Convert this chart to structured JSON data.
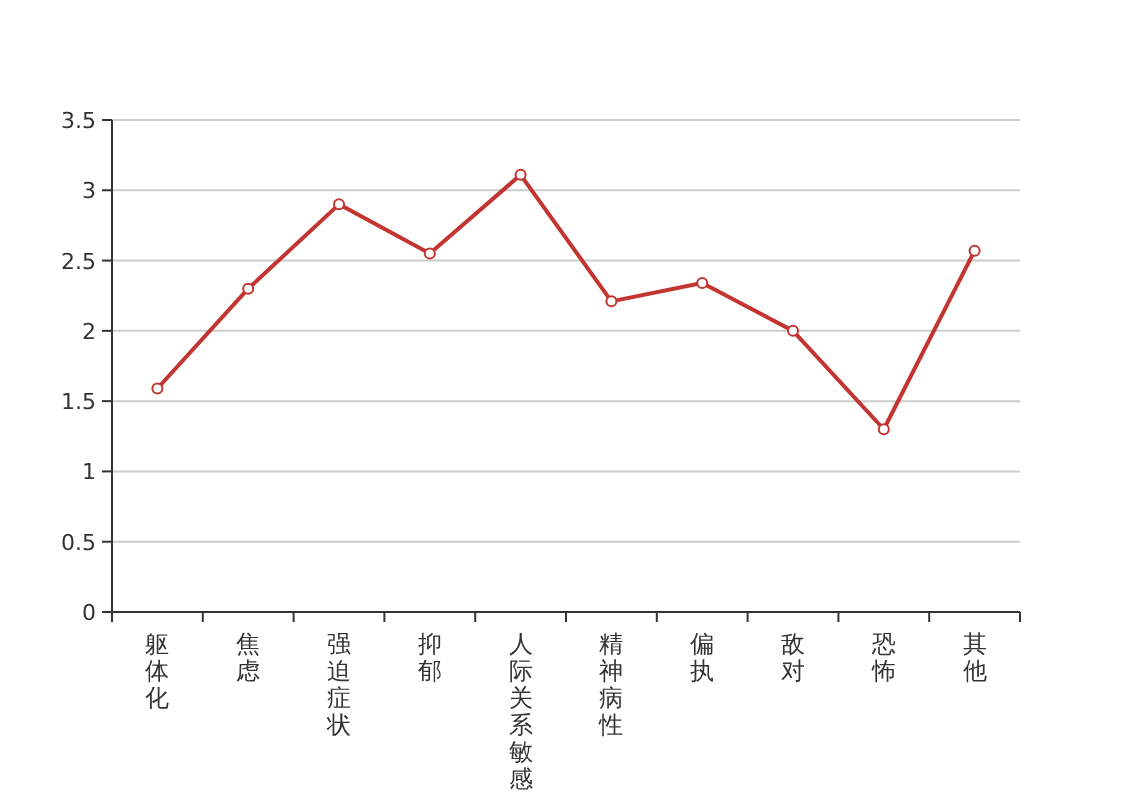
{
  "chart_data": {
    "type": "line",
    "categories": [
      "躯体化",
      "焦虑",
      "强迫症状",
      "抑郁",
      "人际关系敏感",
      "精神病性",
      "偏执",
      "敌对",
      "恐怖",
      "其他"
    ],
    "series": [
      {
        "color": "#c23531",
        "values": [
          1.59,
          2.3,
          2.9,
          2.55,
          3.11,
          2.21,
          2.34,
          2.0,
          1.3,
          2.57
        ]
      }
    ],
    "ylim": [
      0,
      3.5
    ],
    "yticks": [
      0,
      0.5,
      1,
      1.5,
      2,
      2.5,
      3,
      3.5
    ],
    "grid": "y",
    "marker": "circle",
    "line_style": "solid"
  }
}
